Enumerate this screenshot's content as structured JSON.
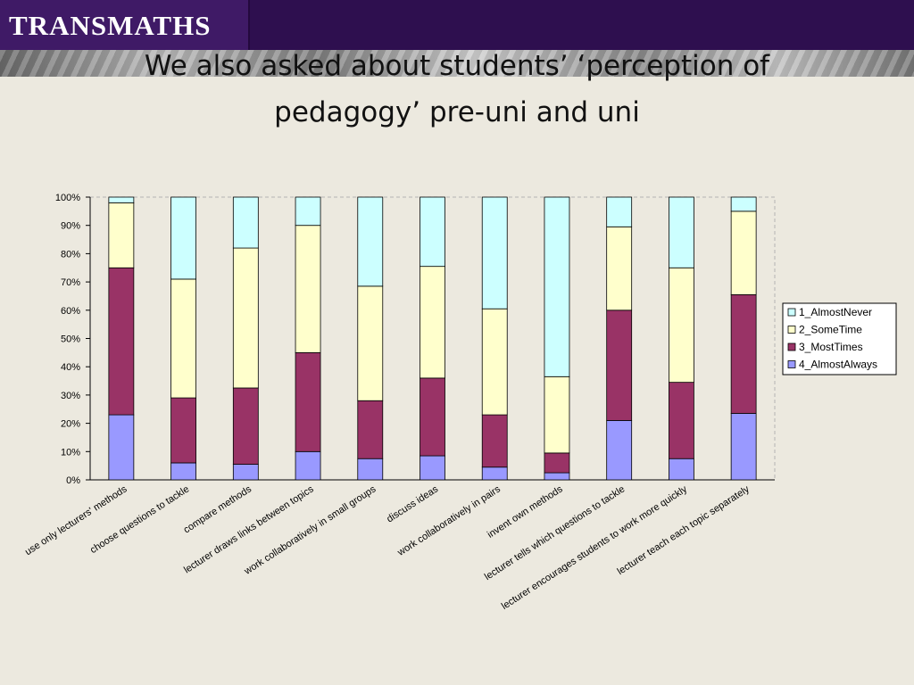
{
  "header": {
    "logo_text": "TRANSMATHS",
    "title": "We also asked about students’ ‘perception of pedagogy’ pre-uni and uni"
  },
  "colors": {
    "4_AlmostAlways": "#9999ff",
    "3_MostTimes": "#993366",
    "2_SomeTime": "#ffffcc",
    "1_AlmostNever": "#ccffff",
    "header_bg": "#2e0f4f"
  },
  "chart_data": {
    "type": "bar",
    "stacked": true,
    "percent": true,
    "ylim": [
      0,
      100
    ],
    "yticks": [
      "0%",
      "10%",
      "20%",
      "30%",
      "40%",
      "50%",
      "60%",
      "70%",
      "80%",
      "90%",
      "100%"
    ],
    "grid": false,
    "legend_position": "right",
    "categories": [
      "use only lecturers' methods",
      "choose questions to tackle",
      "compare methods",
      "lecturer draws links between topics",
      "work collaboratively in small groups",
      "discuss ideas",
      "work collaboratively in pairs",
      "invent own methods",
      "lecturer tells which questions to tackle",
      "lecturer encourages students to work more quickly",
      "lecturer teach each topic separately"
    ],
    "series": [
      {
        "name": "4_AlmostAlways",
        "values": [
          23,
          6,
          5.5,
          10,
          7.5,
          8.5,
          4.5,
          2.5,
          21,
          7.5,
          23.5
        ]
      },
      {
        "name": "3_MostTimes",
        "values": [
          52,
          23,
          27,
          35,
          20.5,
          27.5,
          18.5,
          7,
          39,
          27,
          42
        ]
      },
      {
        "name": "2_SomeTime",
        "values": [
          23,
          42,
          49.5,
          45,
          40.5,
          39.5,
          37.5,
          27,
          29.5,
          40.5,
          29.5
        ]
      },
      {
        "name": "1_AlmostNever",
        "values": [
          2,
          29,
          18,
          10,
          31.5,
          24.5,
          39.5,
          63.5,
          10.5,
          25,
          5
        ]
      }
    ],
    "legend_order": [
      "1_AlmostNever",
      "2_SomeTime",
      "3_MostTimes",
      "4_AlmostAlways"
    ]
  }
}
